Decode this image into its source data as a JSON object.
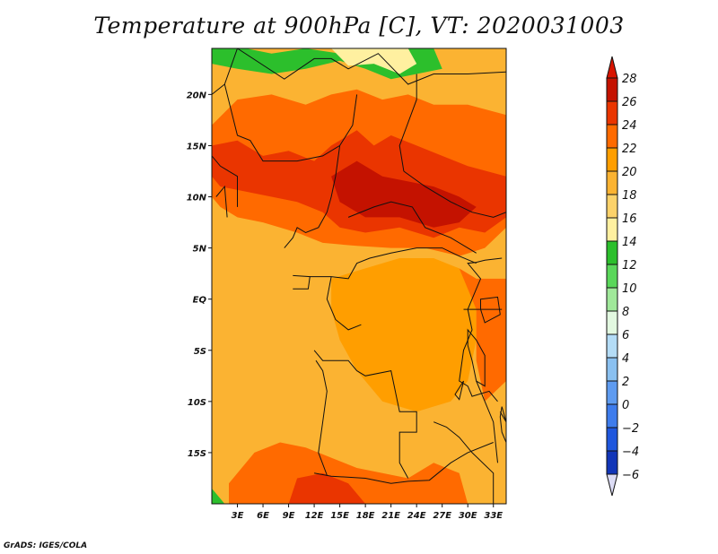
{
  "title": "Temperature at 900hPa [C], VT: 2020031003",
  "credit": "GrADS: IGES/COLA",
  "map": {
    "lon_range": [
      0,
      34.5
    ],
    "lat_range": [
      -20,
      24.5
    ],
    "lat_ticks": [
      {
        "value": 20,
        "label": "20N"
      },
      {
        "value": 15,
        "label": "15N"
      },
      {
        "value": 10,
        "label": "10N"
      },
      {
        "value": 5,
        "label": "5N"
      },
      {
        "value": 0,
        "label": "EQ"
      },
      {
        "value": -5,
        "label": "5S"
      },
      {
        "value": -10,
        "label": "10S"
      },
      {
        "value": -15,
        "label": "15S"
      }
    ],
    "lon_ticks": [
      {
        "value": 3,
        "label": "3E"
      },
      {
        "value": 6,
        "label": "6E"
      },
      {
        "value": 9,
        "label": "9E"
      },
      {
        "value": 12,
        "label": "12E"
      },
      {
        "value": 15,
        "label": "15E"
      },
      {
        "value": 18,
        "label": "18E"
      },
      {
        "value": 21,
        "label": "21E"
      },
      {
        "value": 24,
        "label": "24E"
      },
      {
        "value": 27,
        "label": "27E"
      },
      {
        "value": 30,
        "label": "30E"
      },
      {
        "value": 33,
        "label": "33E"
      }
    ],
    "regions": [
      {
        "name": "north-cool",
        "temp": 14,
        "poly": [
          [
            0,
            24.5
          ],
          [
            4,
            24.5
          ],
          [
            7,
            24
          ],
          [
            11,
            24.5
          ],
          [
            15,
            24
          ],
          [
            20,
            24.5
          ],
          [
            26,
            24.5
          ],
          [
            27,
            22.5
          ],
          [
            24,
            22
          ],
          [
            21,
            21.5
          ],
          [
            18,
            22.5
          ],
          [
            15,
            23.3
          ],
          [
            11,
            22.5
          ],
          [
            7,
            22
          ],
          [
            3,
            22.5
          ],
          [
            0,
            23
          ]
        ]
      },
      {
        "name": "north-mild",
        "temp": 17,
        "poly": [
          [
            14,
            24.5
          ],
          [
            23,
            24.5
          ],
          [
            24,
            23
          ],
          [
            22,
            22
          ],
          [
            19,
            23
          ],
          [
            16,
            22.8
          ]
        ]
      },
      {
        "name": "hot-band-1",
        "temp": 25,
        "poly": [
          [
            0,
            17
          ],
          [
            3,
            19.5
          ],
          [
            7,
            20
          ],
          [
            11,
            19
          ],
          [
            14,
            20
          ],
          [
            17,
            20.5
          ],
          [
            20,
            19.5
          ],
          [
            23,
            20
          ],
          [
            26,
            19
          ],
          [
            30,
            19
          ],
          [
            34.5,
            18
          ],
          [
            34.5,
            7
          ],
          [
            32,
            5
          ],
          [
            29,
            4.2
          ],
          [
            25,
            5
          ],
          [
            21,
            5
          ],
          [
            17,
            5.2
          ],
          [
            13,
            5.5
          ],
          [
            10,
            6.5
          ],
          [
            6,
            7.5
          ],
          [
            3,
            8
          ],
          [
            1,
            9
          ],
          [
            0,
            10
          ]
        ]
      },
      {
        "name": "hot-band-2",
        "temp": 27,
        "poly": [
          [
            0,
            15
          ],
          [
            3,
            15.5
          ],
          [
            6,
            14
          ],
          [
            9,
            14.5
          ],
          [
            12,
            13.5
          ],
          [
            14,
            15
          ],
          [
            17,
            16.5
          ],
          [
            19,
            15
          ],
          [
            21,
            16
          ],
          [
            24,
            15
          ],
          [
            27,
            14
          ],
          [
            30,
            13
          ],
          [
            34.5,
            12
          ],
          [
            34.5,
            8
          ],
          [
            32,
            6.5
          ],
          [
            29,
            7
          ],
          [
            26,
            6
          ],
          [
            22,
            7
          ],
          [
            18,
            6.5
          ],
          [
            15,
            7
          ],
          [
            13,
            8.5
          ],
          [
            10,
            9.5
          ],
          [
            7,
            10
          ],
          [
            4,
            10.5
          ],
          [
            1,
            11
          ],
          [
            0,
            12
          ]
        ]
      },
      {
        "name": "hot-core",
        "temp": 28,
        "poly": [
          [
            14,
            12
          ],
          [
            17,
            13.5
          ],
          [
            20,
            12
          ],
          [
            23,
            11.5
          ],
          [
            26,
            11
          ],
          [
            29,
            10
          ],
          [
            31,
            9
          ],
          [
            29,
            7.5
          ],
          [
            26,
            7
          ],
          [
            22,
            8
          ],
          [
            18,
            8
          ],
          [
            15,
            9.5
          ]
        ]
      },
      {
        "name": "central-warm",
        "temp": 23,
        "poly": [
          [
            14,
            2
          ],
          [
            18,
            3
          ],
          [
            22,
            4
          ],
          [
            26,
            4
          ],
          [
            29,
            3
          ],
          [
            31,
            1
          ],
          [
            31,
            -4
          ],
          [
            30,
            -8
          ],
          [
            28,
            -10
          ],
          [
            24,
            -11
          ],
          [
            20,
            -10
          ],
          [
            17,
            -7
          ],
          [
            15,
            -4
          ],
          [
            14,
            -1
          ]
        ]
      },
      {
        "name": "east-hot",
        "temp": 25,
        "poly": [
          [
            29,
            3
          ],
          [
            31,
            2
          ],
          [
            34.5,
            2
          ],
          [
            34.5,
            -8
          ],
          [
            32,
            -10
          ],
          [
            31,
            -6
          ],
          [
            31,
            -1
          ]
        ]
      },
      {
        "name": "south-hot",
        "temp": 25,
        "poly": [
          [
            2,
            -18
          ],
          [
            5,
            -15
          ],
          [
            8,
            -14
          ],
          [
            11,
            -14.5
          ],
          [
            14,
            -15.5
          ],
          [
            17,
            -16.5
          ],
          [
            20,
            -17
          ],
          [
            23,
            -17.5
          ],
          [
            26,
            -16
          ],
          [
            29,
            -17
          ],
          [
            30,
            -20
          ],
          [
            2,
            -20
          ]
        ]
      },
      {
        "name": "south-core",
        "temp": 27,
        "poly": [
          [
            9,
            -20
          ],
          [
            10,
            -17.5
          ],
          [
            13,
            -17
          ],
          [
            16,
            -18
          ],
          [
            18,
            -20
          ]
        ]
      },
      {
        "name": "coast-cool",
        "temp": 14,
        "poly": [
          [
            0,
            -18.5
          ],
          [
            1.5,
            -20
          ],
          [
            0,
            -20
          ]
        ]
      }
    ],
    "border_lines": [
      [
        [
          3,
          24.5
        ],
        [
          8.5,
          21.5
        ],
        [
          12,
          23.5
        ],
        [
          14,
          23.5
        ],
        [
          16,
          22.5
        ],
        [
          19.5,
          24
        ],
        [
          23,
          21
        ],
        [
          26,
          22
        ],
        [
          27,
          22
        ],
        [
          30,
          22
        ],
        [
          34.5,
          22.2
        ]
      ],
      [
        [
          3,
          24.5
        ],
        [
          1.5,
          21
        ],
        [
          0,
          20
        ]
      ],
      [
        [
          1.5,
          21
        ],
        [
          3,
          16
        ],
        [
          4.5,
          15.5
        ],
        [
          6,
          13.5
        ],
        [
          10,
          13.5
        ],
        [
          13,
          14
        ],
        [
          15,
          15
        ],
        [
          16.5,
          17
        ],
        [
          17,
          20
        ]
      ],
      [
        [
          15,
          15
        ],
        [
          14.5,
          12
        ],
        [
          14,
          10
        ],
        [
          13.5,
          8.5
        ],
        [
          12.5,
          7
        ],
        [
          11,
          6.5
        ],
        [
          10,
          7
        ],
        [
          9.5,
          6
        ],
        [
          8.5,
          5
        ]
      ],
      [
        [
          16,
          8
        ],
        [
          19,
          9
        ],
        [
          21,
          9.5
        ],
        [
          23.5,
          9
        ],
        [
          25,
          7
        ],
        [
          28,
          6
        ],
        [
          31,
          4.5
        ]
      ],
      [
        [
          22.5,
          12.5
        ],
        [
          22,
          15
        ],
        [
          24,
          19.5
        ],
        [
          24,
          22
        ]
      ],
      [
        [
          22.5,
          12.5
        ],
        [
          25,
          11
        ],
        [
          28,
          9.5
        ],
        [
          30.5,
          8.5
        ],
        [
          33,
          8
        ],
        [
          34.5,
          8.5
        ]
      ],
      [
        [
          3,
          9
        ],
        [
          3,
          12
        ],
        [
          1,
          13
        ],
        [
          0,
          14
        ]
      ],
      [
        [
          0.5,
          10
        ],
        [
          1.5,
          11
        ],
        [
          1.8,
          8
        ]
      ],
      [
        [
          9.5,
          2.3
        ],
        [
          11.5,
          2.2
        ],
        [
          11.3,
          1
        ],
        [
          9.5,
          1
        ]
      ],
      [
        [
          11.5,
          2.2
        ],
        [
          14,
          2.2
        ],
        [
          16,
          2
        ],
        [
          17,
          3.5
        ],
        [
          18.5,
          4
        ],
        [
          21,
          4.5
        ],
        [
          24,
          5
        ],
        [
          27,
          5
        ],
        [
          29,
          4.2
        ],
        [
          31,
          3.5
        ]
      ],
      [
        [
          14,
          2.2
        ],
        [
          13.5,
          0
        ],
        [
          14.5,
          -2
        ],
        [
          16,
          -3
        ],
        [
          17.5,
          -2.5
        ]
      ],
      [
        [
          12,
          -5
        ],
        [
          13,
          -6
        ],
        [
          16,
          -6
        ],
        [
          17,
          -7
        ],
        [
          18,
          -7.5
        ],
        [
          21,
          -7
        ],
        [
          22,
          -11
        ],
        [
          24,
          -11
        ],
        [
          24,
          -13
        ],
        [
          22,
          -13
        ],
        [
          22,
          -16
        ],
        [
          23,
          -17.5
        ]
      ],
      [
        [
          12,
          -17
        ],
        [
          14,
          -17.3
        ],
        [
          18,
          -17.5
        ],
        [
          21,
          -18
        ],
        [
          23,
          -17.8
        ],
        [
          25.5,
          -17.7
        ],
        [
          28,
          -16
        ],
        [
          29,
          -15.5
        ],
        [
          30,
          -15
        ],
        [
          33,
          -14
        ]
      ],
      [
        [
          13.5,
          -17.2
        ],
        [
          12.5,
          -15
        ],
        [
          13,
          -12
        ],
        [
          13.5,
          -9
        ],
        [
          13,
          -7
        ],
        [
          12.2,
          -6
        ]
      ],
      [
        [
          30,
          -1
        ],
        [
          30.5,
          -3
        ],
        [
          29.5,
          -5
        ],
        [
          29,
          -8
        ],
        [
          30,
          -8.5
        ],
        [
          30.5,
          -9.5
        ],
        [
          32.5,
          -9
        ],
        [
          33.5,
          -10
        ]
      ],
      [
        [
          30,
          -1
        ],
        [
          31,
          1
        ],
        [
          31.5,
          2
        ],
        [
          30,
          3.5
        ],
        [
          31,
          3.6
        ],
        [
          32,
          3.8
        ],
        [
          34,
          4
        ]
      ],
      [
        [
          29.5,
          -1
        ],
        [
          32,
          -1
        ],
        [
          34,
          -1
        ]
      ],
      [
        [
          33.8,
          -11
        ],
        [
          34.5,
          -12
        ]
      ],
      [
        [
          26,
          -12
        ],
        [
          27.5,
          -12.5
        ],
        [
          29,
          -13.5
        ],
        [
          30.5,
          -15
        ],
        [
          33,
          -17
        ],
        [
          33,
          -20
        ]
      ],
      [
        [
          31,
          -8
        ],
        [
          32,
          -10
        ],
        [
          33,
          -12
        ],
        [
          33.5,
          -16
        ]
      ]
    ],
    "lakes": [
      [
        [
          30,
          -3
        ],
        [
          31,
          -4
        ],
        [
          32,
          -5.5
        ],
        [
          32,
          -8.5
        ],
        [
          31,
          -8
        ],
        [
          30.5,
          -6
        ],
        [
          30,
          -4.5
        ]
      ],
      [
        [
          31.5,
          0
        ],
        [
          33.5,
          0.2
        ],
        [
          33.8,
          -1.5
        ],
        [
          32,
          -2.3
        ],
        [
          31.5,
          -1
        ]
      ],
      [
        [
          34,
          -10.5
        ],
        [
          34.5,
          -12
        ],
        [
          34.5,
          -14
        ],
        [
          34,
          -13
        ],
        [
          33.8,
          -11.5
        ]
      ],
      [
        [
          29.5,
          -8
        ],
        [
          28.5,
          -9.3
        ],
        [
          29,
          -9.8
        ]
      ]
    ]
  },
  "colorbar": {
    "levels": [
      {
        "label": "28",
        "color": "#c41200"
      },
      {
        "label": "26",
        "color": "#ea3500"
      },
      {
        "label": "24",
        "color": "#ff6a00"
      },
      {
        "label": "22",
        "color": "#ff9e00"
      },
      {
        "label": "20",
        "color": "#fbb332"
      },
      {
        "label": "18",
        "color": "#fcd26a"
      },
      {
        "label": "16",
        "color": "#fff0a0"
      },
      {
        "label": "14",
        "color": "#2cbf2c"
      },
      {
        "label": "12",
        "color": "#5ad75a"
      },
      {
        "label": "10",
        "color": "#a0e89a"
      },
      {
        "label": "8",
        "color": "#e2f8e0"
      },
      {
        "label": "6",
        "color": "#b4dcf6"
      },
      {
        "label": "4",
        "color": "#8ac0f0"
      },
      {
        "label": "2",
        "color": "#5e9bf0"
      },
      {
        "label": "0",
        "color": "#3e7cec"
      },
      {
        "label": "−2",
        "color": "#1f57dd"
      },
      {
        "label": "−4",
        "color": "#1236b8"
      },
      {
        "label": "−6",
        "color": "#0a1a72"
      }
    ],
    "top_color": "#d81400",
    "bottom_color": "#dcdcf5"
  }
}
